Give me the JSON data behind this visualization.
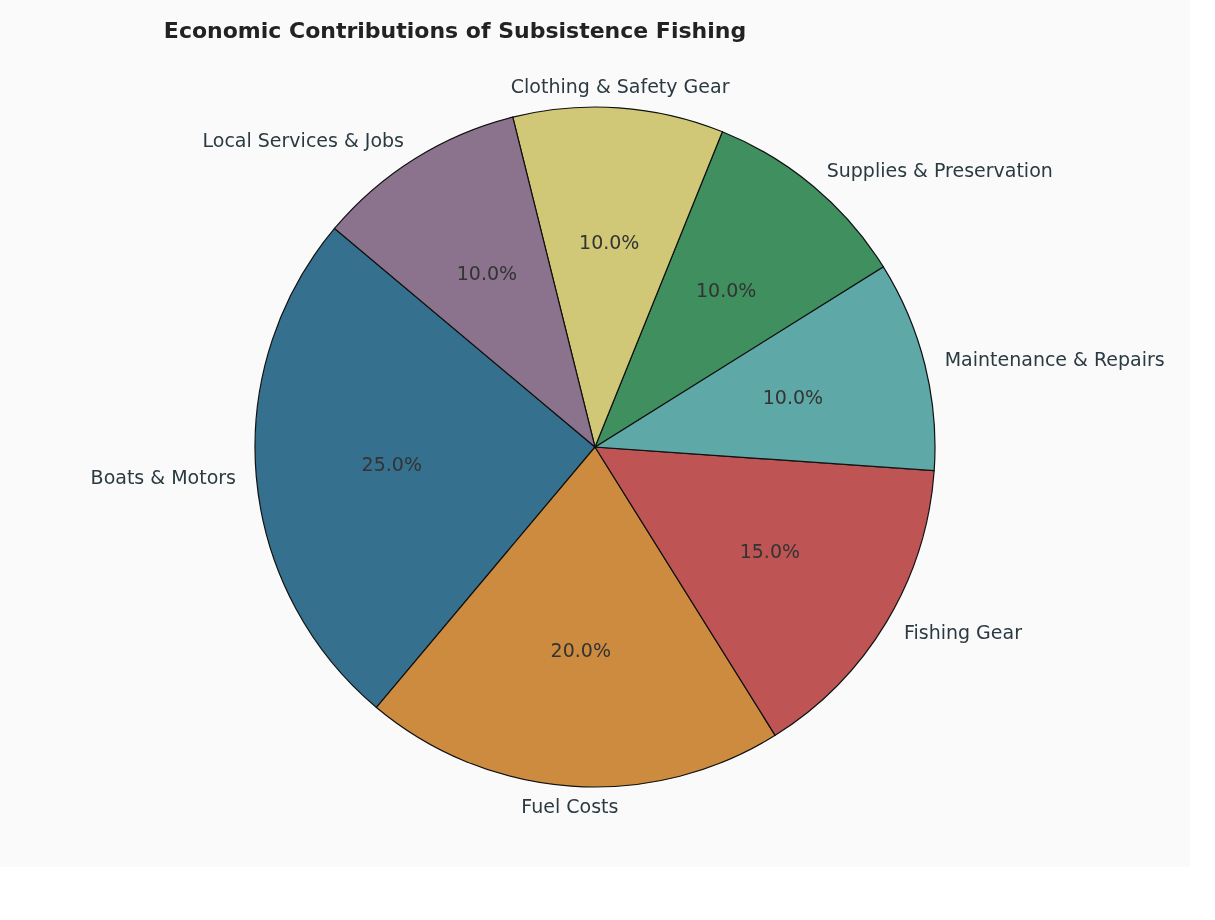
{
  "chart_data": {
    "type": "pie",
    "title": "Economic Contributions of Subsistence Fishing",
    "categories": [
      "Boats & Motors",
      "Fuel Costs",
      "Fishing Gear",
      "Maintenance & Repairs",
      "Supplies & Preservation",
      "Clothing & Safety Gear",
      "Local Services & Jobs"
    ],
    "values": [
      25,
      20,
      15,
      10,
      10,
      10,
      10
    ],
    "colors": [
      "#35718f",
      "#cd8b40",
      "#bf5454",
      "#5fa8a8",
      "#3f8f5f",
      "#d1c877",
      "#8b738d"
    ],
    "value_labels": [
      "25.0%",
      "20.0%",
      "15.0%",
      "10.0%",
      "10.0%",
      "10.0%",
      "10.0%"
    ],
    "legend": false
  }
}
